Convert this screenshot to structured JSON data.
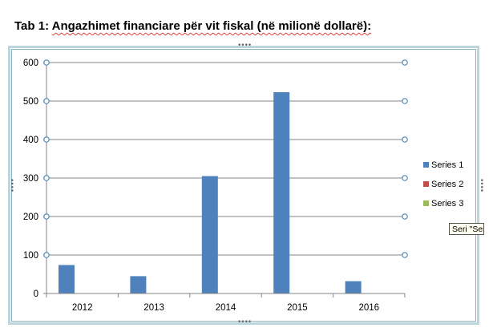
{
  "document": {
    "heading_prefix": "Tab 1: ",
    "heading_text": "Angazhimet financiare për vit fiskal (në milionë dollarë):"
  },
  "tooltip": {
    "text": "Seri \"Serie"
  },
  "colors": {
    "series1": "#4f81bd",
    "series2": "#c0504d",
    "series3": "#9bbb59",
    "frame": "#bcd6df",
    "gridline": "#868686",
    "handle": "#4a88b0"
  },
  "chart_data": {
    "type": "bar",
    "categories": [
      "2012",
      "2013",
      "2014",
      "2015",
      "2016"
    ],
    "series": [
      {
        "name": "Series 1",
        "values": [
          74,
          45,
          305,
          523,
          32
        ]
      },
      {
        "name": "Series 2",
        "values": [
          0,
          0,
          0,
          0,
          0
        ]
      },
      {
        "name": "Series 3",
        "values": [
          0,
          0,
          0,
          0,
          0
        ]
      }
    ],
    "yticks": [
      "0",
      "100",
      "200",
      "300",
      "400",
      "500",
      "600"
    ],
    "ylim": [
      0,
      600
    ],
    "title": "",
    "xlabel": "",
    "ylabel": "",
    "grid": true,
    "legend_position": "right"
  }
}
